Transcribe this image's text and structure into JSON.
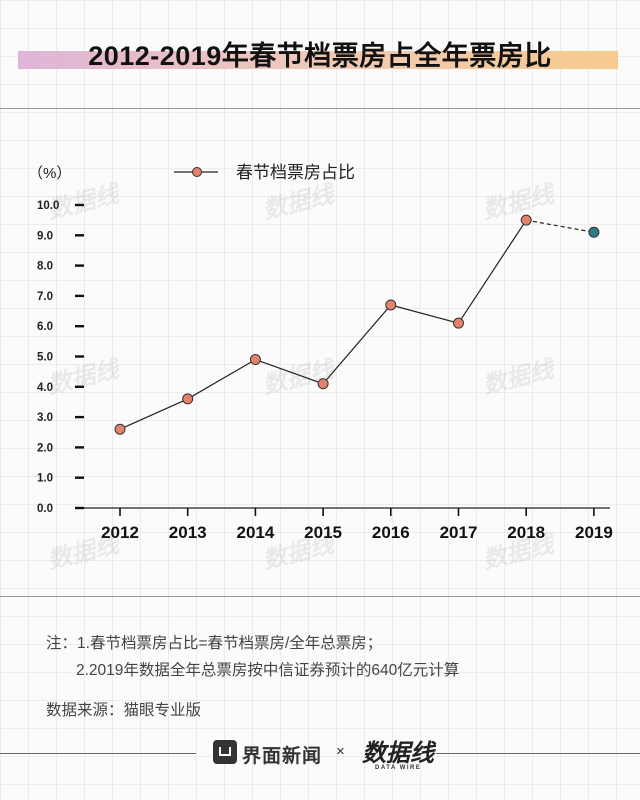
{
  "title": "2012-2019年春节档票房占全年票房比",
  "chart_data": {
    "type": "line",
    "title": "2012-2019年春节档票房占全年票房比",
    "unit_label": "（%）",
    "legend": "春节档票房占比",
    "categories": [
      "2012",
      "2013",
      "2014",
      "2015",
      "2016",
      "2017",
      "2018",
      "2019"
    ],
    "values": [
      2.6,
      3.6,
      4.9,
      4.1,
      6.7,
      6.1,
      9.5,
      9.1
    ],
    "estimated_last_point": true,
    "y_ticks": [
      "0.0",
      "1.0",
      "2.0",
      "3.0",
      "4.0",
      "5.0",
      "6.0",
      "7.0",
      "8.0",
      "9.0",
      "10.0"
    ],
    "ylim": [
      0,
      10
    ],
    "colors": {
      "point": "#e3836c",
      "estimate_point": "#2e7b85",
      "line": "#222222"
    }
  },
  "notes": {
    "lead": "注：",
    "line1": "1.春节档票房占比=春节档票房/全年总票房；",
    "line2": "2.2019年数据全年总票房按中信证券预计的640亿元计算"
  },
  "source": "数据来源：猫眼专业版",
  "footer": {
    "brand1": "界面新闻",
    "cross": "×",
    "brand2": "数据线",
    "brand2_sub": "DATA WIRE"
  },
  "watermark": "数据线"
}
